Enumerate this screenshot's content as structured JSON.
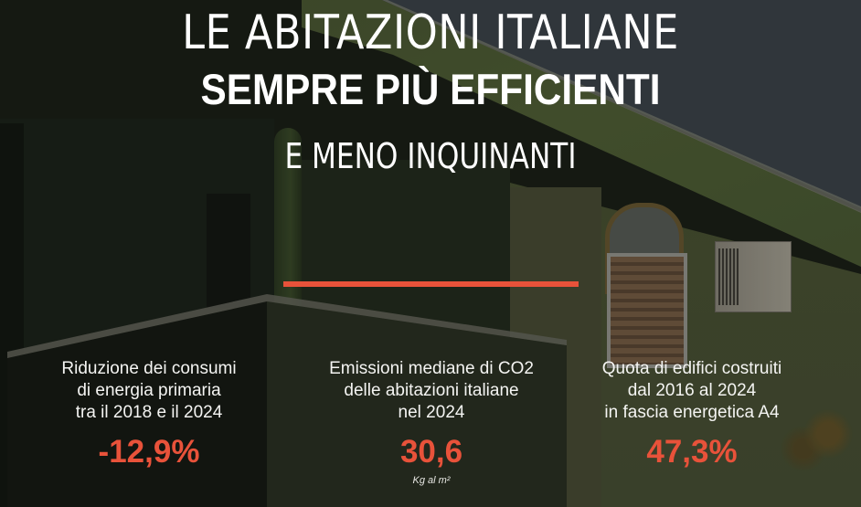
{
  "header": {
    "title_line1": "LE ABITAZIONI ITALIANE",
    "title_line2": "SEMPRE PIÙ EFFICIENTI",
    "subtitle": "E MENO INQUINANTI"
  },
  "colors": {
    "accent": "#e8523a",
    "text": "#ffffff",
    "sky": "#3e464c"
  },
  "stats": [
    {
      "label": "Riduzione dei consumi\ndi energia primaria\ntra il 2018 e il 2024",
      "value": "-12,9%",
      "unit": ""
    },
    {
      "label": "Emissioni mediane di CO2\ndelle abitazioni italiane\nnel 2024",
      "value": "30,6",
      "unit": "Kg al m²"
    },
    {
      "label": "Quota di edifici costruiti\ndal 2016 al 2024\nin fascia energetica A4",
      "value": "47,3%",
      "unit": ""
    }
  ]
}
